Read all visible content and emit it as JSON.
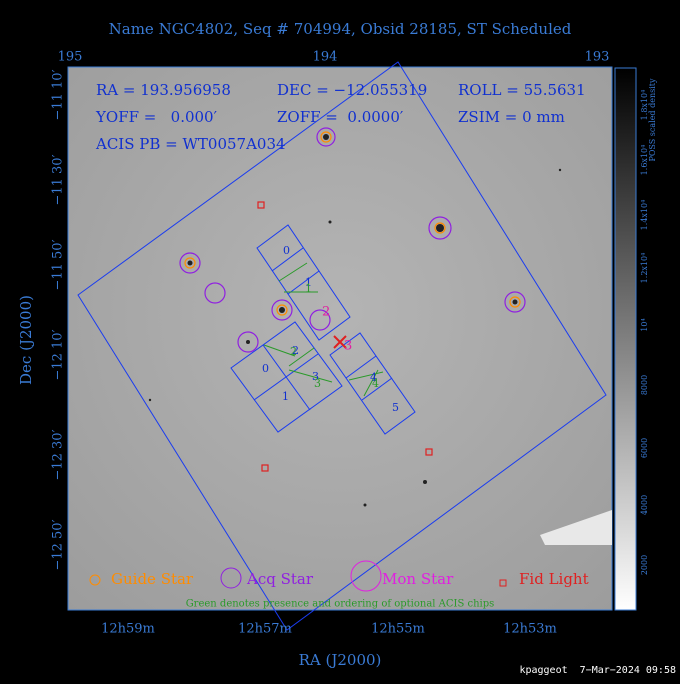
{
  "title": "Name NGC4802, Seq # 704994, Obsid 28185, ST Scheduled",
  "top_axis": [
    "195",
    "194",
    "193"
  ],
  "left_axis": [
    "−11 10′",
    "−11 30′",
    "−11 50′",
    "−12 10′",
    "−12 30′",
    "−12 50′"
  ],
  "bottom_axis": [
    "12h59m",
    "12h57m",
    "12h55m",
    "12h53m"
  ],
  "x_title": "RA (J2000)",
  "y_title": "Dec (J2000)",
  "info": [
    "RA = 193.956958",
    "DEC = −12.055319",
    "ROLL = 55.5631",
    "YOFF =   0.000′",
    "ZOFF =  0.0000′",
    "ZSIM = 0 mm",
    "ACIS PB = WT0057A034"
  ],
  "legend": [
    "Guide Star",
    "Acq Star",
    "Mon Star",
    "Fid Light"
  ],
  "note": "Green denotes presence and ordering of optional ACIS chips",
  "markers": [
    "2",
    "3"
  ],
  "chips": [
    "0",
    "1",
    "2",
    "3",
    "0",
    "1",
    "2",
    "3",
    "4",
    "5"
  ],
  "optional_chips": [
    "1",
    "2",
    "3",
    "4"
  ],
  "colorbar": {
    "title": "POSS scaled density",
    "labels": [
      "2000",
      "4000",
      "6000",
      "8000",
      "10⁴",
      "1.2x10⁴",
      "1.4x10⁴",
      "1.6x10⁴",
      "1.8x10⁴"
    ]
  },
  "footer": "kpaggeot  7−Mar−2024 09:58"
}
